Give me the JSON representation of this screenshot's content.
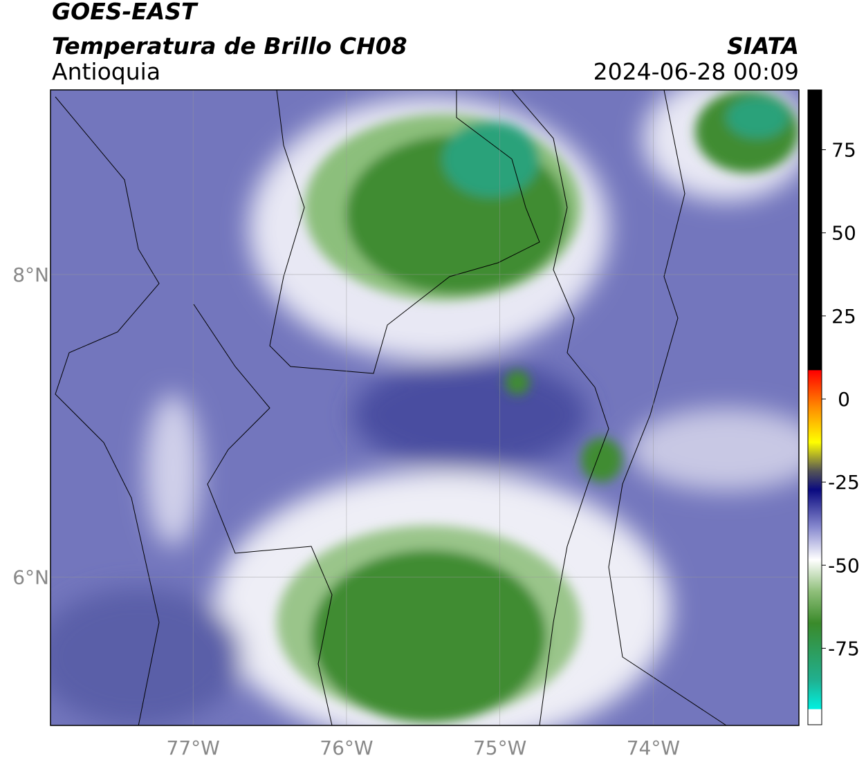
{
  "header": {
    "title": "GOES-EAST",
    "subtitle": "Temperatura de Brillo CH08",
    "region": "Antioquia",
    "source": "SIATA",
    "datetime": "2024-06-28 00:09"
  },
  "map": {
    "xlim": [
      -77.93,
      -73.05
    ],
    "ylim": [
      5.02,
      9.22
    ],
    "xticks": [
      {
        "value": -77,
        "label": "77°W"
      },
      {
        "value": -76,
        "label": "76°W"
      },
      {
        "value": -75,
        "label": "75°W"
      },
      {
        "value": -74,
        "label": "74°W"
      }
    ],
    "yticks": [
      {
        "value": 8,
        "label": "8°N"
      },
      {
        "value": 6,
        "label": "6°N"
      }
    ],
    "grid": true
  },
  "colorbar": {
    "lim": [
      -98,
      93
    ],
    "ticks": [
      75,
      50,
      25,
      0,
      -25,
      -50,
      -75
    ]
  }
}
